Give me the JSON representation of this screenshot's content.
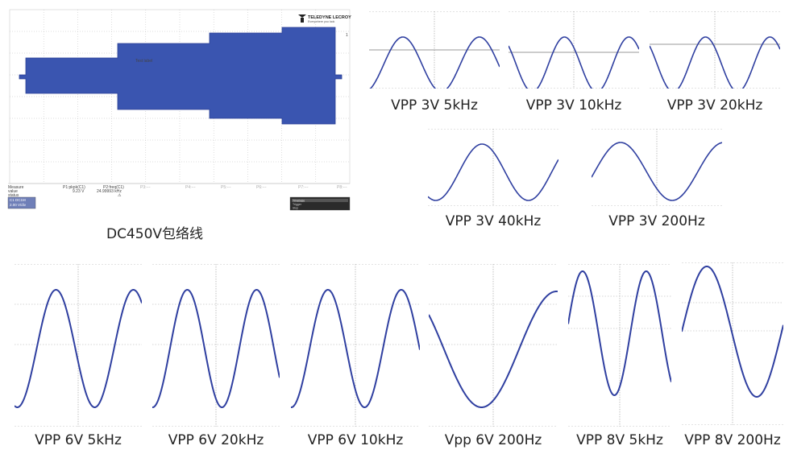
{
  "colors": {
    "trace": "#2f3fa0",
    "envelope_fill": "#3a55b0",
    "grid": "#9a9a9a",
    "envelope_edge": "#2a3f95"
  },
  "envelope": {
    "caption": "DC450V包络线",
    "logo_text": "TELEDYNE LECROY",
    "logo_subtext": "Everywhere you look",
    "marker_text": "Test label",
    "right_marker": "1",
    "measure": {
      "row_labels": [
        "Measure",
        "value",
        "status"
      ],
      "p1_header": "P1:pkpk(C1)",
      "p1_value": "9.23 V",
      "p2_header": "P2:freq(C1)",
      "p2_value": "24.99993 kHz",
      "p2_status": "⚠",
      "other_headers": [
        "P3:---",
        "P4:---",
        "P5:---",
        "P6:---",
        "P7:---",
        "P8:---"
      ]
    },
    "channel_box": {
      "line1": "C1 DC1M",
      "line2": "2.00 V/div"
    },
    "timebase_box": {
      "line1": "Timebase",
      "line2": "Trigger",
      "line3": "Stop"
    }
  },
  "waveforms": [
    {
      "id": "vpp3v-5khz",
      "caption": "VPP 3V 5kHz"
    },
    {
      "id": "vpp3v-10khz",
      "caption": "VPP 3V 10kHz"
    },
    {
      "id": "vpp3v-20khz",
      "caption": "VPP 3V 20kHz"
    },
    {
      "id": "vpp3v-40khz",
      "caption": "VPP 3V 40kHz"
    },
    {
      "id": "vpp3v-200hz",
      "caption": "VPP 3V 200Hz"
    },
    {
      "id": "vpp6v-5khz",
      "caption": "VPP 6V  5kHz"
    },
    {
      "id": "vpp6v-20khz",
      "caption": "VPP 6V  20kHz"
    },
    {
      "id": "vpp6v-10khz",
      "caption": "VPP 6V 10kHz"
    },
    {
      "id": "vpp6v-200hz",
      "caption": "Vpp 6V 200Hz"
    },
    {
      "id": "vpp8v-5khz",
      "caption": "VPP 8V  5kHz"
    },
    {
      "id": "vpp8v-200hz",
      "caption": "VPP 8V  200Hz"
    }
  ]
}
